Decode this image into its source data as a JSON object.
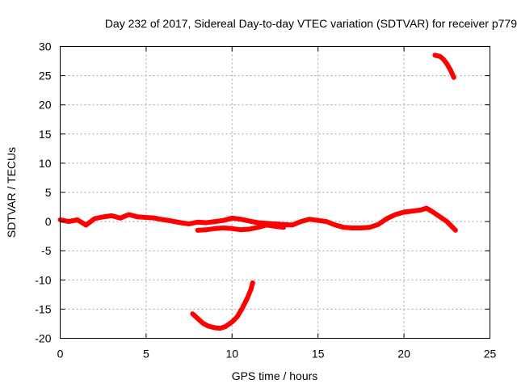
{
  "chart_data": {
    "type": "line",
    "title": "Day 232 of 2017, Sidereal Day-to-day VTEC variation (SDTVAR) for receiver p779",
    "xlabel": "GPS time / hours",
    "ylabel": "SDTVAR / TECUs",
    "xlim": [
      0,
      25
    ],
    "ylim": [
      -20,
      30
    ],
    "xticks": [
      0,
      5,
      10,
      15,
      20,
      25
    ],
    "yticks": [
      -20,
      -15,
      -10,
      -5,
      0,
      5,
      10,
      15,
      20,
      25,
      30
    ],
    "grid": true,
    "color": "#ff0000",
    "series": [
      {
        "name": "main-trace",
        "points": [
          [
            0,
            0.3
          ],
          [
            0.5,
            0.0
          ],
          [
            1.0,
            0.3
          ],
          [
            1.5,
            -0.6
          ],
          [
            2.0,
            0.5
          ],
          [
            2.5,
            0.8
          ],
          [
            3.0,
            1.0
          ],
          [
            3.5,
            0.6
          ],
          [
            4.0,
            1.2
          ],
          [
            4.5,
            0.8
          ],
          [
            5.0,
            0.7
          ],
          [
            5.5,
            0.6
          ],
          [
            6.0,
            0.3
          ],
          [
            6.5,
            0.1
          ],
          [
            7.0,
            -0.2
          ],
          [
            7.5,
            -0.4
          ],
          [
            8.0,
            -0.1
          ],
          [
            8.5,
            -0.2
          ],
          [
            9.0,
            0.0
          ],
          [
            9.5,
            0.2
          ],
          [
            10.0,
            0.6
          ],
          [
            10.5,
            0.4
          ],
          [
            11.0,
            0.1
          ],
          [
            11.5,
            -0.2
          ],
          [
            12.0,
            -0.3
          ],
          [
            12.5,
            -0.4
          ],
          [
            13.0,
            -0.5
          ],
          [
            13.5,
            -0.6
          ],
          [
            14.0,
            0.0
          ],
          [
            14.5,
            0.4
          ],
          [
            15.0,
            0.2
          ],
          [
            15.5,
            0.0
          ],
          [
            16.0,
            -0.6
          ],
          [
            16.5,
            -1.0
          ],
          [
            17.0,
            -1.1
          ],
          [
            17.5,
            -1.1
          ],
          [
            18.0,
            -1.0
          ],
          [
            18.5,
            -0.5
          ],
          [
            19.0,
            0.5
          ],
          [
            19.5,
            1.2
          ],
          [
            20.0,
            1.6
          ],
          [
            20.5,
            1.8
          ],
          [
            21.0,
            2.0
          ],
          [
            21.3,
            2.3
          ],
          [
            21.6,
            1.8
          ],
          [
            22.0,
            1.0
          ],
          [
            22.5,
            0.0
          ],
          [
            23.0,
            -1.5
          ]
        ]
      },
      {
        "name": "lower-branch",
        "points": [
          [
            8.0,
            -1.5
          ],
          [
            8.5,
            -1.4
          ],
          [
            9.0,
            -1.2
          ],
          [
            9.5,
            -1.1
          ],
          [
            10.0,
            -1.2
          ],
          [
            10.5,
            -1.4
          ],
          [
            11.0,
            -1.3
          ],
          [
            11.5,
            -1.0
          ],
          [
            12.0,
            -0.6
          ],
          [
            12.5,
            -0.8
          ],
          [
            13.0,
            -1.0
          ]
        ]
      },
      {
        "name": "dip-arc",
        "points": [
          [
            7.7,
            -15.8
          ],
          [
            8.0,
            -16.6
          ],
          [
            8.3,
            -17.4
          ],
          [
            8.6,
            -17.9
          ],
          [
            9.0,
            -18.2
          ],
          [
            9.3,
            -18.3
          ],
          [
            9.6,
            -18.0
          ],
          [
            10.0,
            -17.2
          ],
          [
            10.3,
            -16.3
          ],
          [
            10.6,
            -14.8
          ],
          [
            10.9,
            -13.0
          ],
          [
            11.1,
            -11.6
          ],
          [
            11.2,
            -10.5
          ]
        ]
      },
      {
        "name": "top-arc",
        "points": [
          [
            21.8,
            28.5
          ],
          [
            22.1,
            28.3
          ],
          [
            22.3,
            27.8
          ],
          [
            22.5,
            27.0
          ],
          [
            22.7,
            26.0
          ],
          [
            22.9,
            24.7
          ]
        ]
      }
    ]
  }
}
